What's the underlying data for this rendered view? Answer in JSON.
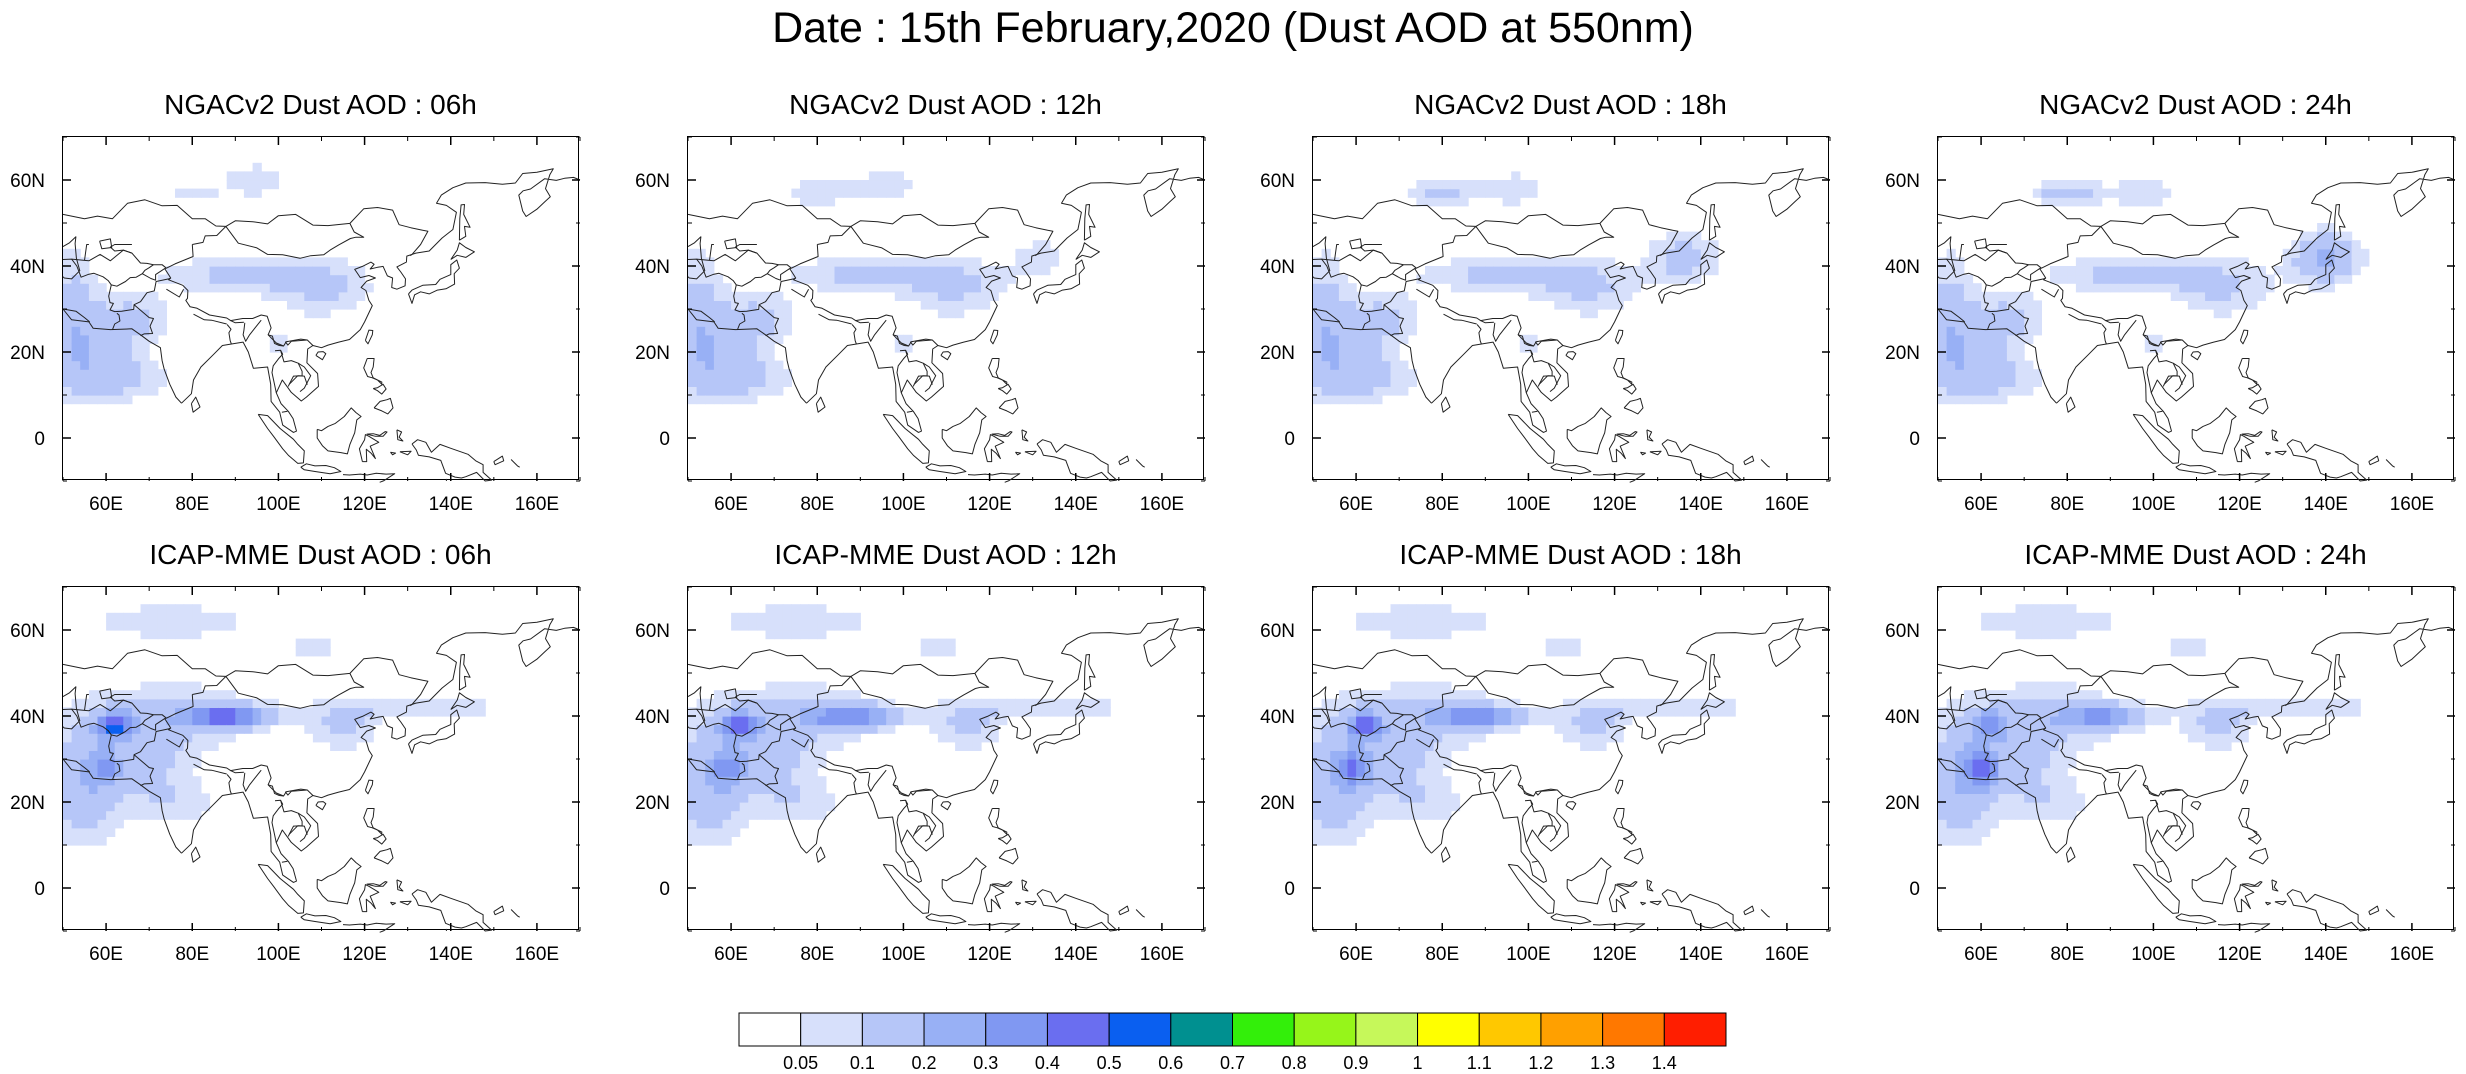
{
  "title": "Date : 15th February,2020 (Dust AOD at 550nm)",
  "panels": [
    {
      "title": "NGACv2 Dust AOD : 06h",
      "model": "NGACv2",
      "hour": "06h"
    },
    {
      "title": "NGACv2 Dust AOD : 12h",
      "model": "NGACv2",
      "hour": "12h"
    },
    {
      "title": "NGACv2 Dust AOD : 18h",
      "model": "NGACv2",
      "hour": "18h"
    },
    {
      "title": "NGACv2 Dust AOD : 24h",
      "model": "NGACv2",
      "hour": "24h"
    },
    {
      "title": "ICAP-MME Dust AOD : 06h",
      "model": "ICAP-MME",
      "hour": "06h"
    },
    {
      "title": "ICAP-MME Dust AOD : 12h",
      "model": "ICAP-MME",
      "hour": "12h"
    },
    {
      "title": "ICAP-MME Dust AOD : 18h",
      "model": "ICAP-MME",
      "hour": "18h"
    },
    {
      "title": "ICAP-MME Dust AOD : 24h",
      "model": "ICAP-MME",
      "hour": "24h"
    }
  ],
  "map_extent": {
    "lon": [
      50,
      170
    ],
    "lat": [
      -10,
      70
    ]
  },
  "lon_ticks": [
    "60E",
    "80E",
    "100E",
    "120E",
    "140E",
    "160E"
  ],
  "lon_tick_values": [
    60,
    80,
    100,
    120,
    140,
    160
  ],
  "lat_ticks": [
    "60N",
    "40N",
    "20N",
    "0"
  ],
  "lat_tick_values": [
    60,
    40,
    20,
    0
  ],
  "colorbar": {
    "labels": [
      "0.05",
      "0.1",
      "0.2",
      "0.3",
      "0.4",
      "0.5",
      "0.6",
      "0.7",
      "0.8",
      "0.9",
      "1",
      "1.1",
      "1.2",
      "1.3",
      "1.4"
    ],
    "colors": [
      "#ffffff",
      "#d7e0fb",
      "#b6c6f8",
      "#98b0f5",
      "#8098f2",
      "#6a6ef0",
      "#0a5ff0",
      "#009090",
      "#33ef0a",
      "#96f51a",
      "#c6f85a",
      "#ffff00",
      "#ffc800",
      "#ffa000",
      "#ff7800",
      "#ff1e00"
    ]
  }
}
